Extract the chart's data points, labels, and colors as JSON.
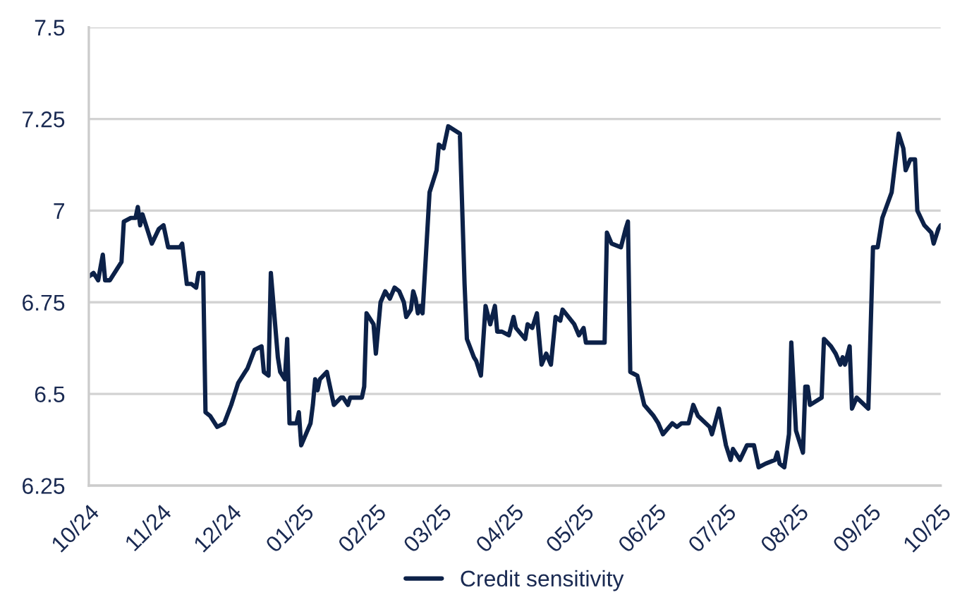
{
  "chart_data": {
    "type": "line",
    "legend": "bottom",
    "grid": "y",
    "marker": "none",
    "line_style": "solid",
    "ylim": [
      6.25,
      7.5
    ],
    "yticks": [
      6.25,
      6.5,
      6.75,
      7,
      7.25,
      7.5
    ],
    "xlim": [
      "2024-10-01",
      "2025-10-01"
    ],
    "xticks": [
      {
        "value": "2024-10-01",
        "label": "10/24"
      },
      {
        "value": "2024-11-01",
        "label": "11/24"
      },
      {
        "value": "2024-12-01",
        "label": "12/24"
      },
      {
        "value": "2025-01-01",
        "label": "01/25"
      },
      {
        "value": "2025-02-01",
        "label": "02/25"
      },
      {
        "value": "2025-03-01",
        "label": "03/25"
      },
      {
        "value": "2025-04-01",
        "label": "04/25"
      },
      {
        "value": "2025-05-01",
        "label": "05/25"
      },
      {
        "value": "2025-06-01",
        "label": "06/25"
      },
      {
        "value": "2025-07-01",
        "label": "07/25"
      },
      {
        "value": "2025-08-01",
        "label": "08/25"
      },
      {
        "value": "2025-09-01",
        "label": "09/25"
      },
      {
        "value": "2025-10-01",
        "label": "10/25"
      }
    ],
    "x": [
      "2024-10-01",
      "2024-10-03",
      "2024-10-05",
      "2024-10-07",
      "2024-10-08",
      "2024-10-10",
      "2024-10-15",
      "2024-10-16",
      "2024-10-19",
      "2024-10-21",
      "2024-10-22",
      "2024-10-23",
      "2024-10-24",
      "2024-10-26",
      "2024-10-28",
      "2024-10-31",
      "2024-11-02",
      "2024-11-04",
      "2024-11-09",
      "2024-11-10",
      "2024-11-12",
      "2024-11-14",
      "2024-11-16",
      "2024-11-17",
      "2024-11-19",
      "2024-11-20",
      "2024-11-22",
      "2024-11-25",
      "2024-11-28",
      "2024-12-01",
      "2024-12-02",
      "2024-12-04",
      "2024-12-07",
      "2024-12-08",
      "2024-12-11",
      "2024-12-14",
      "2024-12-15",
      "2024-12-17",
      "2024-12-18",
      "2024-12-21",
      "2024-12-22",
      "2024-12-24",
      "2024-12-25",
      "2024-12-26",
      "2024-12-29",
      "2024-12-30",
      "2024-12-31",
      "2025-01-04",
      "2025-01-05",
      "2025-01-06",
      "2025-01-07",
      "2025-01-08",
      "2025-01-11",
      "2025-01-12",
      "2025-01-14",
      "2025-01-17",
      "2025-01-18",
      "2025-01-20",
      "2025-01-21",
      "2025-01-26",
      "2025-01-27",
      "2025-01-28",
      "2025-01-31",
      "2025-02-01",
      "2025-02-03",
      "2025-02-05",
      "2025-02-07",
      "2025-02-09",
      "2025-02-11",
      "2025-02-13",
      "2025-02-14",
      "2025-02-16",
      "2025-02-17",
      "2025-02-18",
      "2025-02-19",
      "2025-02-20",
      "2025-02-21",
      "2025-02-24",
      "2025-02-27",
      "2025-02-28",
      "2025-03-02",
      "2025-03-04",
      "2025-03-09",
      "2025-03-11",
      "2025-03-12",
      "2025-03-15",
      "2025-03-16",
      "2025-03-18",
      "2025-03-20",
      "2025-03-22",
      "2025-03-24",
      "2025-03-25",
      "2025-03-27",
      "2025-03-30",
      "2025-04-01",
      "2025-04-02",
      "2025-04-06",
      "2025-04-07",
      "2025-04-09",
      "2025-04-11",
      "2025-04-13",
      "2025-04-15",
      "2025-04-17",
      "2025-04-19",
      "2025-04-21",
      "2025-04-22",
      "2025-04-27",
      "2025-04-29",
      "2025-05-01",
      "2025-05-02",
      "2025-05-10",
      "2025-05-11",
      "2025-05-13",
      "2025-05-17",
      "2025-05-19",
      "2025-05-20",
      "2025-05-21",
      "2025-05-24",
      "2025-05-27",
      "2025-05-31",
      "2025-06-02",
      "2025-06-04",
      "2025-06-08",
      "2025-06-10",
      "2025-06-12",
      "2025-06-15",
      "2025-06-17",
      "2025-06-19",
      "2025-06-24",
      "2025-06-25",
      "2025-06-28",
      "2025-07-01",
      "2025-07-03",
      "2025-07-04",
      "2025-07-07",
      "2025-07-10",
      "2025-07-13",
      "2025-07-15",
      "2025-07-18",
      "2025-07-22",
      "2025-07-23",
      "2025-07-24",
      "2025-07-26",
      "2025-07-28",
      "2025-07-29",
      "2025-07-31",
      "2025-08-03",
      "2025-08-04",
      "2025-08-05",
      "2025-08-06",
      "2025-08-11",
      "2025-08-12",
      "2025-08-15",
      "2025-08-17",
      "2025-08-19",
      "2025-08-20",
      "2025-08-21",
      "2025-08-23",
      "2025-08-24",
      "2025-08-26",
      "2025-08-31",
      "2025-09-02",
      "2025-09-04",
      "2025-09-06",
      "2025-09-10",
      "2025-09-13",
      "2025-09-15",
      "2025-09-16",
      "2025-09-18",
      "2025-09-20",
      "2025-09-21",
      "2025-09-24",
      "2025-09-27",
      "2025-09-28",
      "2025-09-30",
      "2025-10-01"
    ],
    "series": [
      {
        "name": "Credit sensitivity",
        "color": "#0c2148",
        "values": [
          6.82,
          6.83,
          6.81,
          6.88,
          6.81,
          6.81,
          6.86,
          6.97,
          6.98,
          6.98,
          7.01,
          6.96,
          6.99,
          6.95,
          6.91,
          6.95,
          6.96,
          6.9,
          6.9,
          6.91,
          6.8,
          6.8,
          6.79,
          6.83,
          6.83,
          6.45,
          6.44,
          6.41,
          6.42,
          6.47,
          6.49,
          6.53,
          6.56,
          6.57,
          6.62,
          6.63,
          6.56,
          6.55,
          6.83,
          6.6,
          6.56,
          6.54,
          6.65,
          6.42,
          6.42,
          6.45,
          6.36,
          6.42,
          6.47,
          6.54,
          6.51,
          6.54,
          6.56,
          6.53,
          6.47,
          6.49,
          6.49,
          6.47,
          6.49,
          6.49,
          6.52,
          6.72,
          6.69,
          6.61,
          6.75,
          6.78,
          6.76,
          6.79,
          6.78,
          6.75,
          6.71,
          6.73,
          6.78,
          6.76,
          6.72,
          6.74,
          6.72,
          7.05,
          7.11,
          7.18,
          7.17,
          7.23,
          7.21,
          6.8,
          6.65,
          6.6,
          6.59,
          6.55,
          6.74,
          6.69,
          6.74,
          6.67,
          6.67,
          6.66,
          6.71,
          6.68,
          6.65,
          6.69,
          6.68,
          6.72,
          6.58,
          6.61,
          6.58,
          6.71,
          6.7,
          6.73,
          6.69,
          6.66,
          6.68,
          6.64,
          6.64,
          6.94,
          6.91,
          6.9,
          6.95,
          6.97,
          6.56,
          6.55,
          6.47,
          6.44,
          6.42,
          6.39,
          6.42,
          6.41,
          6.42,
          6.42,
          6.47,
          6.44,
          6.41,
          6.39,
          6.46,
          6.36,
          6.32,
          6.35,
          6.32,
          6.36,
          6.36,
          6.3,
          6.31,
          6.32,
          6.34,
          6.31,
          6.3,
          6.39,
          6.64,
          6.4,
          6.34,
          6.52,
          6.52,
          6.47,
          6.49,
          6.65,
          6.63,
          6.61,
          6.58,
          6.6,
          6.58,
          6.63,
          6.46,
          6.49,
          6.46,
          6.9,
          6.9,
          6.98,
          7.05,
          7.21,
          7.17,
          7.11,
          7.14,
          7.14,
          7.0,
          6.96,
          6.94,
          6.91,
          6.95,
          6.96
        ]
      }
    ]
  }
}
